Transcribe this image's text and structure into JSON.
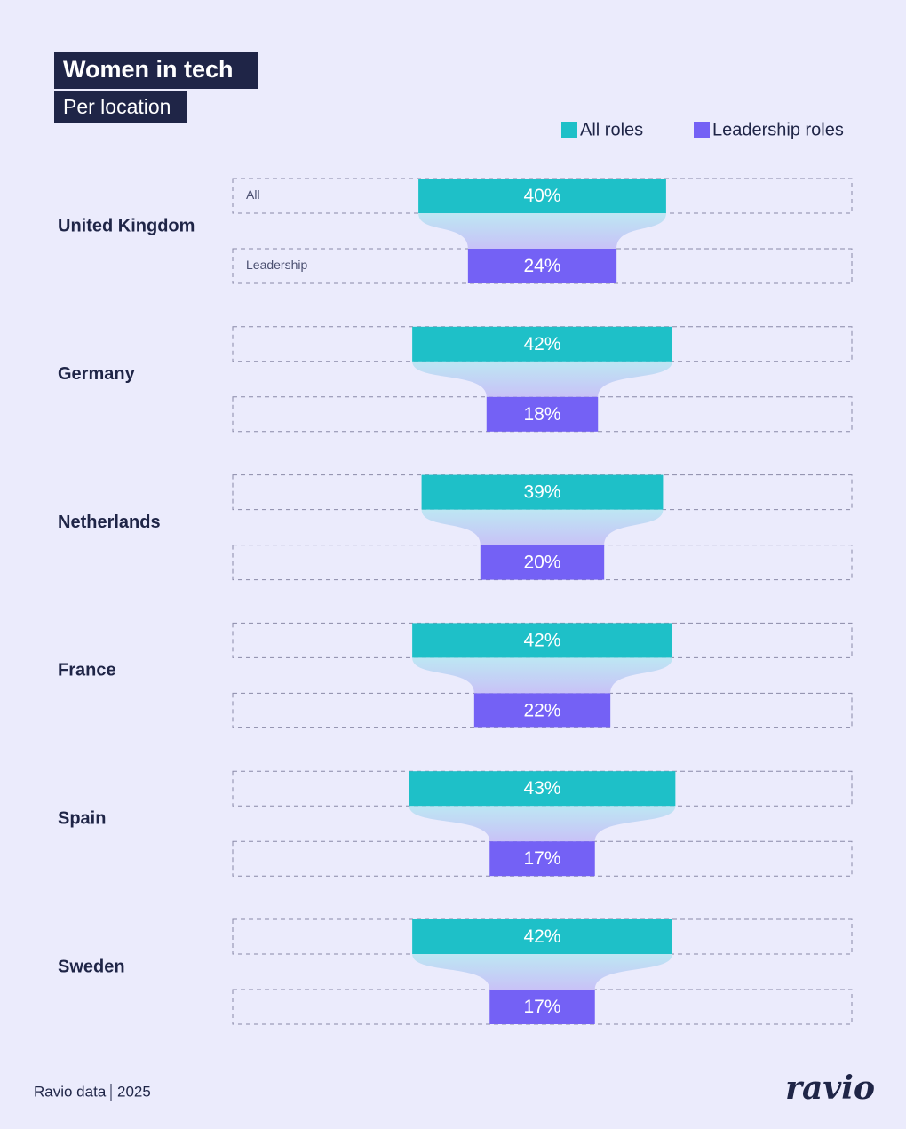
{
  "chart_data": {
    "type": "funnel",
    "title": "Women in tech",
    "subtitle": "Per location",
    "categories": [
      "United Kingdom",
      "Germany",
      "Netherlands",
      "France",
      "Spain",
      "Sweden"
    ],
    "row_labels": [
      "All",
      "Leadership"
    ],
    "series": [
      {
        "name": "All roles",
        "color": "#1ec0c8",
        "values": [
          40,
          42,
          39,
          42,
          43,
          42
        ],
        "value_labels": [
          "40%",
          "42%",
          "39%",
          "42%",
          "43%",
          "42%"
        ]
      },
      {
        "name": "Leadership roles",
        "color": "#7461f5",
        "values": [
          24,
          18,
          20,
          22,
          17,
          17
        ],
        "value_labels": [
          "24%",
          "18%",
          "20%",
          "22%",
          "17%",
          "17%"
        ]
      }
    ],
    "xlim": [
      0,
      100
    ],
    "footer": {
      "source": "Ravio data",
      "year": "2025",
      "logo": "ravio"
    }
  }
}
